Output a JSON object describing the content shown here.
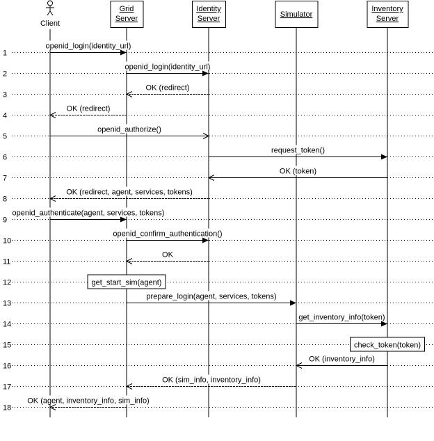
{
  "participants": [
    {
      "id": "client",
      "label": [
        "Client"
      ],
      "kind": "actor"
    },
    {
      "id": "grid",
      "label": [
        "Grid",
        "Server"
      ],
      "kind": "object"
    },
    {
      "id": "identity",
      "label": [
        "Identity",
        "Server"
      ],
      "kind": "object"
    },
    {
      "id": "sim",
      "label": [
        "Simulator"
      ],
      "kind": "object"
    },
    {
      "id": "inventory",
      "label": [
        "Inventory",
        "Server"
      ],
      "kind": "object"
    }
  ],
  "rows": [
    "1",
    "2",
    "3",
    "4",
    "5",
    "6",
    "7",
    "8",
    "9",
    "10",
    "11",
    "12",
    "13",
    "14",
    "15",
    "16",
    "17",
    "18"
  ],
  "messages": [
    {
      "row": 1,
      "from": "client",
      "to": "grid",
      "label": "openid_login(identity_url)",
      "style": "call"
    },
    {
      "row": 2,
      "from": "grid",
      "to": "identity",
      "label": "openid_login(identity_url)",
      "style": "call"
    },
    {
      "row": 3,
      "from": "identity",
      "to": "grid",
      "label": "OK (redirect)",
      "style": "return"
    },
    {
      "row": 4,
      "from": "grid",
      "to": "client",
      "label": "OK (redirect)",
      "style": "return"
    },
    {
      "row": 5,
      "from": "client",
      "to": "identity",
      "label": "openid_authorize()",
      "style": "async"
    },
    {
      "row": 6,
      "from": "identity",
      "to": "inventory",
      "label": "request_token()",
      "style": "call"
    },
    {
      "row": 7,
      "from": "inventory",
      "to": "identity",
      "label": "OK (token)",
      "style": "return"
    },
    {
      "row": 8,
      "from": "identity",
      "to": "client",
      "label": "OK (redirect, agent, services, tokens)",
      "style": "return"
    },
    {
      "row": 9,
      "from": "client",
      "to": "grid",
      "label": "openid_authenticate(agent, services, tokens)",
      "style": "call"
    },
    {
      "row": 10,
      "from": "grid",
      "to": "identity",
      "label": "openid_confirm_authentication()",
      "style": "call"
    },
    {
      "row": 11,
      "from": "identity",
      "to": "grid",
      "label": "OK",
      "style": "return"
    },
    {
      "row": 13,
      "from": "grid",
      "to": "sim",
      "label": "prepare_login(agent, services, tokens)",
      "style": "call"
    },
    {
      "row": 14,
      "from": "sim",
      "to": "inventory",
      "label": "get_inventory_info(token)",
      "style": "call"
    },
    {
      "row": 16,
      "from": "inventory",
      "to": "sim",
      "label": "OK (inventory_info)",
      "style": "return"
    },
    {
      "row": 17,
      "from": "sim",
      "to": "grid",
      "label": "OK (sim_info, inventory_info)",
      "style": "return"
    },
    {
      "row": 18,
      "from": "grid",
      "to": "client",
      "label": "OK (agent, inventory_info, sim_info)",
      "style": "return"
    }
  ],
  "notes": [
    {
      "row": 12,
      "on": "grid",
      "label": "get_start_sim(agent)"
    },
    {
      "row": 15,
      "on": "inventory",
      "label": "check_token(token)"
    }
  ]
}
